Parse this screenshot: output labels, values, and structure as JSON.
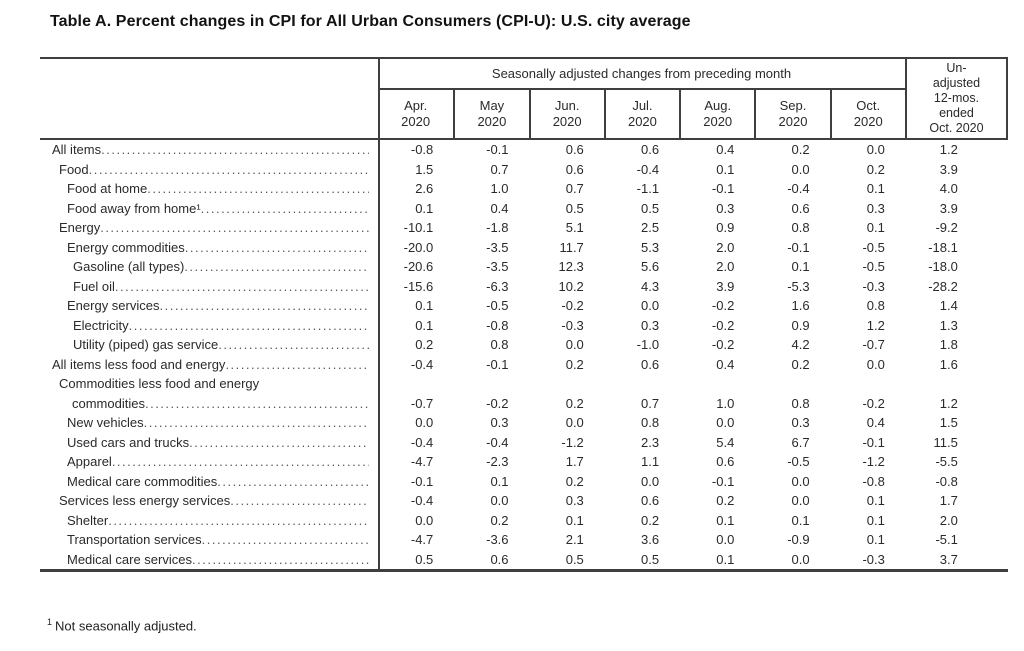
{
  "title": "Table A. Percent changes in CPI for All Urban Consumers (CPI-U): U.S. city average",
  "table": {
    "header": {
      "seasonal_label": "Seasonally adjusted changes from preceding month",
      "months": [
        "Apr.\n2020",
        "May\n2020",
        "Jun.\n2020",
        "Jul.\n2020",
        "Aug.\n2020",
        "Sep.\n2020",
        "Oct.\n2020"
      ],
      "unadjusted_label": "Un-\nadjusted\n12-mos.\nended\nOct. 2020"
    },
    "rows": [
      {
        "label": "All items",
        "indent": 0,
        "values": [
          "-0.8",
          "-0.1",
          "0.6",
          "0.6",
          "0.4",
          "0.2",
          "0.0",
          "1.2"
        ]
      },
      {
        "label": "Food",
        "indent": 1,
        "values": [
          "1.5",
          "0.7",
          "0.6",
          "-0.4",
          "0.1",
          "0.0",
          "0.2",
          "3.9"
        ]
      },
      {
        "label": "Food at home",
        "indent": 2,
        "values": [
          "2.6",
          "1.0",
          "0.7",
          "-1.1",
          "-0.1",
          "-0.4",
          "0.1",
          "4.0"
        ]
      },
      {
        "label": "Food away from home¹",
        "indent": 2,
        "values": [
          "0.1",
          "0.4",
          "0.5",
          "0.5",
          "0.3",
          "0.6",
          "0.3",
          "3.9"
        ]
      },
      {
        "label": "Energy",
        "indent": 1,
        "values": [
          "-10.1",
          "-1.8",
          "5.1",
          "2.5",
          "0.9",
          "0.8",
          "0.1",
          "-9.2"
        ]
      },
      {
        "label": "Energy commodities",
        "indent": 2,
        "values": [
          "-20.0",
          "-3.5",
          "11.7",
          "5.3",
          "2.0",
          "-0.1",
          "-0.5",
          "-18.1"
        ]
      },
      {
        "label": "Gasoline (all types)",
        "indent": 3,
        "values": [
          "-20.6",
          "-3.5",
          "12.3",
          "5.6",
          "2.0",
          "0.1",
          "-0.5",
          "-18.0"
        ]
      },
      {
        "label": "Fuel oil",
        "indent": 3,
        "values": [
          "-15.6",
          "-6.3",
          "10.2",
          "4.3",
          "3.9",
          "-5.3",
          "-0.3",
          "-28.2"
        ]
      },
      {
        "label": "Energy services",
        "indent": 2,
        "values": [
          "0.1",
          "-0.5",
          "-0.2",
          "0.0",
          "-0.2",
          "1.6",
          "0.8",
          "1.4"
        ]
      },
      {
        "label": "Electricity",
        "indent": 3,
        "values": [
          "0.1",
          "-0.8",
          "-0.3",
          "0.3",
          "-0.2",
          "0.9",
          "1.2",
          "1.3"
        ]
      },
      {
        "label": "Utility (piped) gas service",
        "indent": 3,
        "values": [
          "0.2",
          "0.8",
          "0.0",
          "-1.0",
          "-0.2",
          "4.2",
          "-0.7",
          "1.8"
        ]
      },
      {
        "label": "All items less food and energy",
        "indent": 0,
        "values": [
          "-0.4",
          "-0.1",
          "0.2",
          "0.6",
          "0.4",
          "0.2",
          "0.0",
          "1.6"
        ]
      },
      {
        "label": "Commodities less food and energy\ncommodities",
        "indent": 1,
        "twoLine": true,
        "values": [
          "-0.7",
          "-0.2",
          "0.2",
          "0.7",
          "1.0",
          "0.8",
          "-0.2",
          "1.2"
        ]
      },
      {
        "label": "New vehicles",
        "indent": 2,
        "values": [
          "0.0",
          "0.3",
          "0.0",
          "0.8",
          "0.0",
          "0.3",
          "0.4",
          "1.5"
        ]
      },
      {
        "label": "Used cars and trucks",
        "indent": 2,
        "values": [
          "-0.4",
          "-0.4",
          "-1.2",
          "2.3",
          "5.4",
          "6.7",
          "-0.1",
          "11.5"
        ]
      },
      {
        "label": "Apparel",
        "indent": 2,
        "values": [
          "-4.7",
          "-2.3",
          "1.7",
          "1.1",
          "0.6",
          "-0.5",
          "-1.2",
          "-5.5"
        ]
      },
      {
        "label": "Medical care commodities",
        "indent": 2,
        "values": [
          "-0.1",
          "0.1",
          "0.2",
          "0.0",
          "-0.1",
          "0.0",
          "-0.8",
          "-0.8"
        ]
      },
      {
        "label": "Services less energy services",
        "indent": 1,
        "values": [
          "-0.4",
          "0.0",
          "0.3",
          "0.6",
          "0.2",
          "0.0",
          "0.1",
          "1.7"
        ]
      },
      {
        "label": "Shelter",
        "indent": 2,
        "values": [
          "0.0",
          "0.2",
          "0.1",
          "0.2",
          "0.1",
          "0.1",
          "0.1",
          "2.0"
        ]
      },
      {
        "label": "Transportation services",
        "indent": 2,
        "values": [
          "-4.7",
          "-3.6",
          "2.1",
          "3.6",
          "0.0",
          "-0.9",
          "0.1",
          "-5.1"
        ]
      },
      {
        "label": "Medical care services",
        "indent": 2,
        "values": [
          "0.5",
          "0.6",
          "0.5",
          "0.5",
          "0.1",
          "0.0",
          "-0.3",
          "3.7"
        ]
      }
    ]
  },
  "footnote": {
    "sup": "1",
    "text": "Not seasonally adjusted."
  }
}
